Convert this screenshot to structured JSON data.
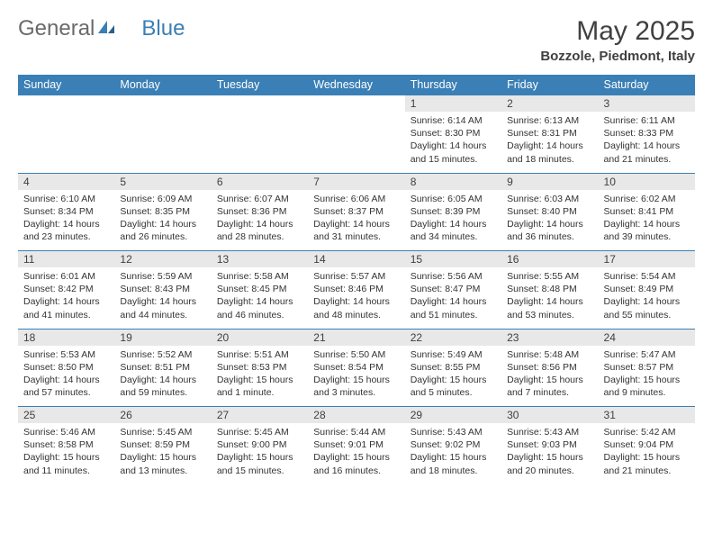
{
  "logo": {
    "text1": "General",
    "text2": "Blue"
  },
  "title": "May 2025",
  "location": "Bozzole, Piedmont, Italy",
  "header_color": "#3a7fb5",
  "daynum_bg": "#e8e8e8",
  "days": [
    "Sunday",
    "Monday",
    "Tuesday",
    "Wednesday",
    "Thursday",
    "Friday",
    "Saturday"
  ],
  "weeks": [
    [
      null,
      null,
      null,
      null,
      {
        "n": "1",
        "sr": "6:14 AM",
        "ss": "8:30 PM",
        "dl": "14 hours and 15 minutes."
      },
      {
        "n": "2",
        "sr": "6:13 AM",
        "ss": "8:31 PM",
        "dl": "14 hours and 18 minutes."
      },
      {
        "n": "3",
        "sr": "6:11 AM",
        "ss": "8:33 PM",
        "dl": "14 hours and 21 minutes."
      }
    ],
    [
      {
        "n": "4",
        "sr": "6:10 AM",
        "ss": "8:34 PM",
        "dl": "14 hours and 23 minutes."
      },
      {
        "n": "5",
        "sr": "6:09 AM",
        "ss": "8:35 PM",
        "dl": "14 hours and 26 minutes."
      },
      {
        "n": "6",
        "sr": "6:07 AM",
        "ss": "8:36 PM",
        "dl": "14 hours and 28 minutes."
      },
      {
        "n": "7",
        "sr": "6:06 AM",
        "ss": "8:37 PM",
        "dl": "14 hours and 31 minutes."
      },
      {
        "n": "8",
        "sr": "6:05 AM",
        "ss": "8:39 PM",
        "dl": "14 hours and 34 minutes."
      },
      {
        "n": "9",
        "sr": "6:03 AM",
        "ss": "8:40 PM",
        "dl": "14 hours and 36 minutes."
      },
      {
        "n": "10",
        "sr": "6:02 AM",
        "ss": "8:41 PM",
        "dl": "14 hours and 39 minutes."
      }
    ],
    [
      {
        "n": "11",
        "sr": "6:01 AM",
        "ss": "8:42 PM",
        "dl": "14 hours and 41 minutes."
      },
      {
        "n": "12",
        "sr": "5:59 AM",
        "ss": "8:43 PM",
        "dl": "14 hours and 44 minutes."
      },
      {
        "n": "13",
        "sr": "5:58 AM",
        "ss": "8:45 PM",
        "dl": "14 hours and 46 minutes."
      },
      {
        "n": "14",
        "sr": "5:57 AM",
        "ss": "8:46 PM",
        "dl": "14 hours and 48 minutes."
      },
      {
        "n": "15",
        "sr": "5:56 AM",
        "ss": "8:47 PM",
        "dl": "14 hours and 51 minutes."
      },
      {
        "n": "16",
        "sr": "5:55 AM",
        "ss": "8:48 PM",
        "dl": "14 hours and 53 minutes."
      },
      {
        "n": "17",
        "sr": "5:54 AM",
        "ss": "8:49 PM",
        "dl": "14 hours and 55 minutes."
      }
    ],
    [
      {
        "n": "18",
        "sr": "5:53 AM",
        "ss": "8:50 PM",
        "dl": "14 hours and 57 minutes."
      },
      {
        "n": "19",
        "sr": "5:52 AM",
        "ss": "8:51 PM",
        "dl": "14 hours and 59 minutes."
      },
      {
        "n": "20",
        "sr": "5:51 AM",
        "ss": "8:53 PM",
        "dl": "15 hours and 1 minute."
      },
      {
        "n": "21",
        "sr": "5:50 AM",
        "ss": "8:54 PM",
        "dl": "15 hours and 3 minutes."
      },
      {
        "n": "22",
        "sr": "5:49 AM",
        "ss": "8:55 PM",
        "dl": "15 hours and 5 minutes."
      },
      {
        "n": "23",
        "sr": "5:48 AM",
        "ss": "8:56 PM",
        "dl": "15 hours and 7 minutes."
      },
      {
        "n": "24",
        "sr": "5:47 AM",
        "ss": "8:57 PM",
        "dl": "15 hours and 9 minutes."
      }
    ],
    [
      {
        "n": "25",
        "sr": "5:46 AM",
        "ss": "8:58 PM",
        "dl": "15 hours and 11 minutes."
      },
      {
        "n": "26",
        "sr": "5:45 AM",
        "ss": "8:59 PM",
        "dl": "15 hours and 13 minutes."
      },
      {
        "n": "27",
        "sr": "5:45 AM",
        "ss": "9:00 PM",
        "dl": "15 hours and 15 minutes."
      },
      {
        "n": "28",
        "sr": "5:44 AM",
        "ss": "9:01 PM",
        "dl": "15 hours and 16 minutes."
      },
      {
        "n": "29",
        "sr": "5:43 AM",
        "ss": "9:02 PM",
        "dl": "15 hours and 18 minutes."
      },
      {
        "n": "30",
        "sr": "5:43 AM",
        "ss": "9:03 PM",
        "dl": "15 hours and 20 minutes."
      },
      {
        "n": "31",
        "sr": "5:42 AM",
        "ss": "9:04 PM",
        "dl": "15 hours and 21 minutes."
      }
    ]
  ],
  "labels": {
    "sunrise": "Sunrise: ",
    "sunset": "Sunset: ",
    "daylight": "Daylight: "
  }
}
